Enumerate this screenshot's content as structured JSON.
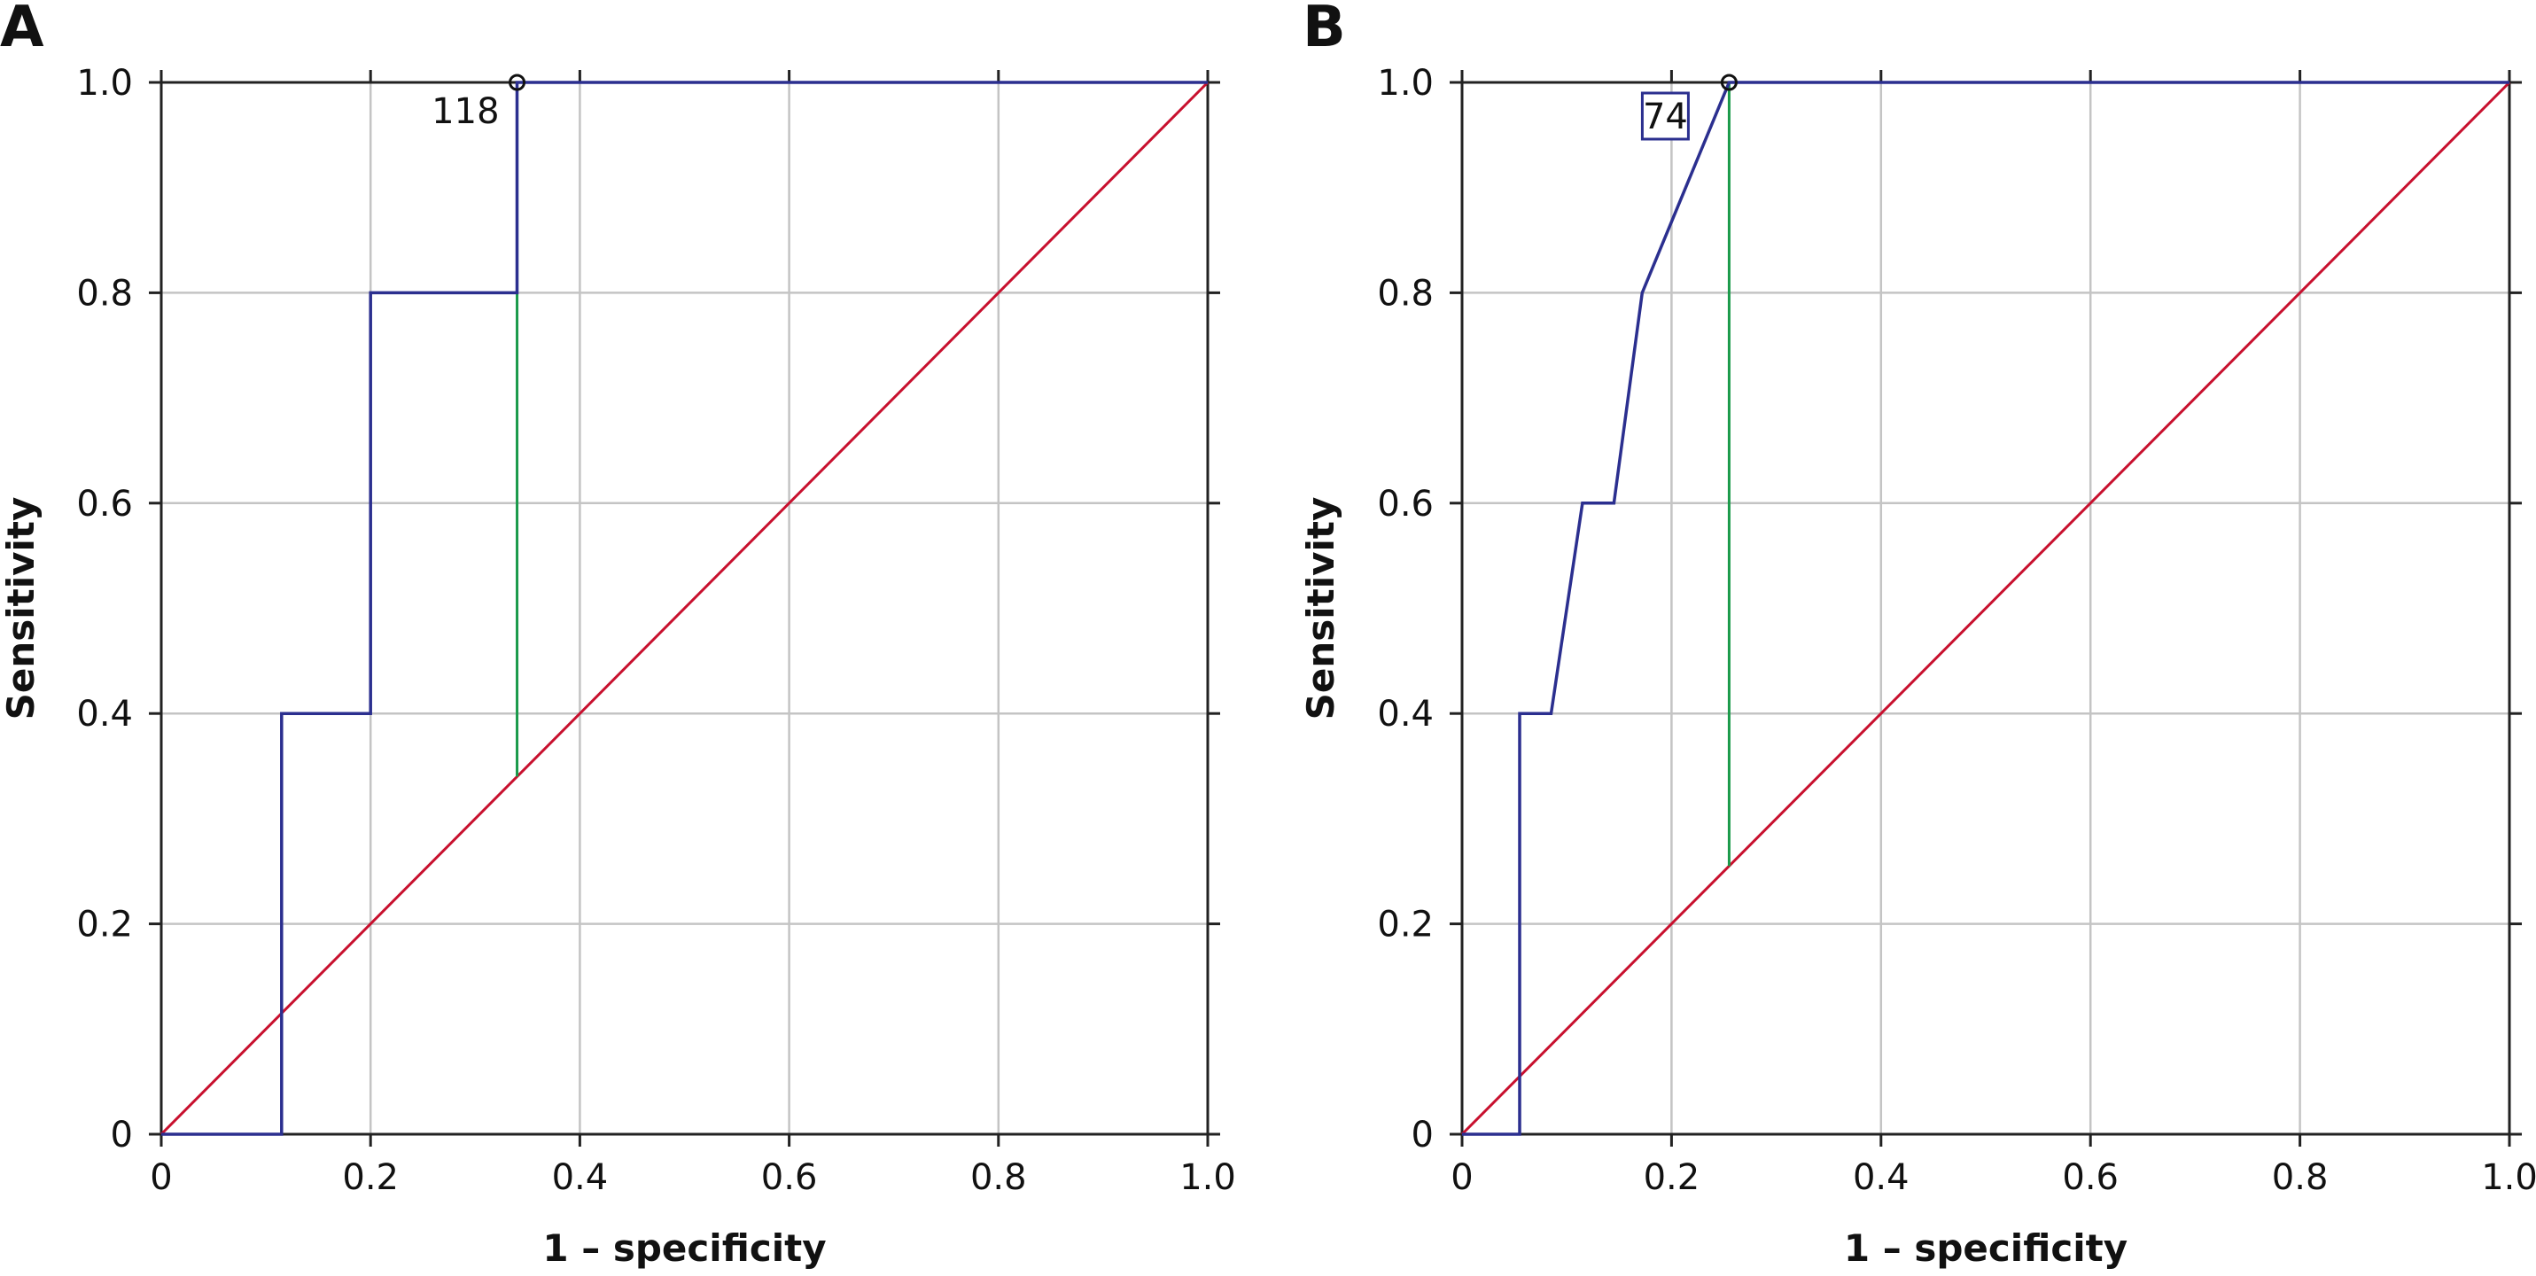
{
  "chart_data": [
    {
      "type": "line",
      "panel_label": "A",
      "xlabel": "1 – specificity",
      "ylabel": "Sensitivity",
      "xlim": [
        0,
        1.0
      ],
      "ylim": [
        0,
        1.0
      ],
      "x_ticks": [
        "0",
        "0.2",
        "0.4",
        "0.6",
        "0.8",
        "1.0"
      ],
      "y_ticks": [
        "0",
        "0.2",
        "0.4",
        "0.6",
        "0.8",
        "1.0"
      ],
      "grid": true,
      "series": [
        {
          "color": "#2b2f8f",
          "points": [
            [
              0,
              0
            ],
            [
              0.115,
              0
            ],
            [
              0.115,
              0.4
            ],
            [
              0.2,
              0.4
            ],
            [
              0.2,
              0.8
            ],
            [
              0.34,
              0.8
            ],
            [
              0.34,
              1.0
            ],
            [
              1.0,
              1.0
            ]
          ]
        }
      ],
      "reference_line": {
        "color": "#c8102e",
        "points": [
          [
            0,
            0
          ],
          [
            1,
            1
          ]
        ]
      },
      "youden_line": {
        "color": "#1a9a4a",
        "x": 0.34,
        "y_from": 0.34,
        "y_to": 1.0
      },
      "optimal_point": {
        "x": 0.34,
        "y": 1.0,
        "label": "118",
        "boxed": false
      }
    },
    {
      "type": "line",
      "panel_label": "B",
      "xlabel": "1 – specificity",
      "ylabel": "Sensitivity",
      "xlim": [
        0,
        1.0
      ],
      "ylim": [
        0,
        1.0
      ],
      "x_ticks": [
        "0",
        "0.2",
        "0.4",
        "0.6",
        "0.8",
        "1.0"
      ],
      "y_ticks": [
        "0",
        "0.2",
        "0.4",
        "0.6",
        "0.8",
        "1.0"
      ],
      "grid": true,
      "series": [
        {
          "color": "#2b2f8f",
          "points": [
            [
              0,
              0
            ],
            [
              0.055,
              0
            ],
            [
              0.055,
              0.4
            ],
            [
              0.085,
              0.4
            ],
            [
              0.115,
              0.6
            ],
            [
              0.145,
              0.6
            ],
            [
              0.172,
              0.8
            ],
            [
              0.255,
              1.0
            ],
            [
              1.0,
              1.0
            ]
          ]
        }
      ],
      "reference_line": {
        "color": "#c8102e",
        "points": [
          [
            0,
            0
          ],
          [
            1,
            1
          ]
        ]
      },
      "youden_line": {
        "color": "#1a9a4a",
        "x": 0.255,
        "y_from": 0.255,
        "y_to": 1.0
      },
      "optimal_point": {
        "x": 0.255,
        "y": 1.0,
        "label": "74",
        "boxed": true
      }
    }
  ]
}
